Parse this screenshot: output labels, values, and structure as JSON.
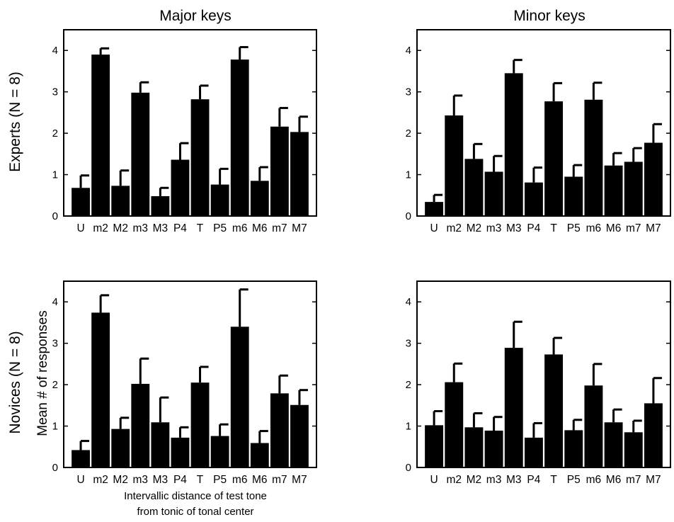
{
  "figure": {
    "row_labels": [
      "Experts (N = 8)",
      "Novices (N = 8)"
    ],
    "col_titles": [
      "Major keys",
      "Minor keys"
    ],
    "ylabel": "Mean # of responses",
    "xlabel_lines": [
      "Intervallic distance of test tone",
      "from tonic of tonal center"
    ]
  },
  "chart_data": [
    {
      "type": "bar",
      "title": "Major keys",
      "row": "Experts (N = 8)",
      "categories": [
        "U",
        "m2",
        "M2",
        "m3",
        "M3",
        "P4",
        "T",
        "P5",
        "m6",
        "M6",
        "m7",
        "M7"
      ],
      "values": [
        0.68,
        3.9,
        0.73,
        2.98,
        0.48,
        1.36,
        2.82,
        0.76,
        3.78,
        0.85,
        2.16,
        2.03
      ],
      "errors": [
        0.3,
        0.15,
        0.37,
        0.25,
        0.2,
        0.4,
        0.33,
        0.38,
        0.3,
        0.33,
        0.45,
        0.37
      ],
      "ylim": [
        0,
        4.5
      ],
      "yticks": [
        0,
        1,
        2,
        3,
        4
      ]
    },
    {
      "type": "bar",
      "title": "Minor keys",
      "row": "Experts (N = 8)",
      "categories": [
        "U",
        "m2",
        "M2",
        "m3",
        "M3",
        "P4",
        "T",
        "P5",
        "m6",
        "M6",
        "m7",
        "M7"
      ],
      "values": [
        0.34,
        2.43,
        1.38,
        1.07,
        3.45,
        0.81,
        2.77,
        0.95,
        2.81,
        1.22,
        1.31,
        1.77
      ],
      "errors": [
        0.17,
        0.48,
        0.36,
        0.38,
        0.32,
        0.36,
        0.44,
        0.28,
        0.41,
        0.3,
        0.33,
        0.45
      ],
      "ylim": [
        0,
        4.5
      ],
      "yticks": [
        0,
        1,
        2,
        3,
        4
      ]
    },
    {
      "type": "bar",
      "title": "",
      "row": "Novices (N = 8)",
      "categories": [
        "U",
        "m2",
        "M2",
        "m3",
        "M3",
        "P4",
        "T",
        "P5",
        "m6",
        "M6",
        "m7",
        "M7"
      ],
      "values": [
        0.42,
        3.74,
        0.93,
        2.02,
        1.09,
        0.72,
        2.05,
        0.76,
        3.4,
        0.59,
        1.79,
        1.51
      ],
      "errors": [
        0.22,
        0.42,
        0.27,
        0.61,
        0.6,
        0.25,
        0.38,
        0.28,
        0.9,
        0.29,
        0.43,
        0.36
      ],
      "ylim": [
        0,
        4.5
      ],
      "yticks": [
        0,
        1,
        2,
        3,
        4
      ]
    },
    {
      "type": "bar",
      "title": "",
      "row": "Novices (N = 8)",
      "categories": [
        "U",
        "m2",
        "M2",
        "m3",
        "M3",
        "P4",
        "T",
        "P5",
        "m6",
        "M6",
        "m7",
        "M7"
      ],
      "values": [
        1.02,
        2.06,
        0.97,
        0.89,
        2.89,
        0.72,
        2.73,
        0.9,
        1.98,
        1.09,
        0.85,
        1.55
      ],
      "errors": [
        0.34,
        0.45,
        0.34,
        0.33,
        0.63,
        0.35,
        0.4,
        0.25,
        0.52,
        0.31,
        0.28,
        0.61
      ],
      "ylim": [
        0,
        4.5
      ],
      "yticks": [
        0,
        1,
        2,
        3,
        4
      ]
    }
  ]
}
